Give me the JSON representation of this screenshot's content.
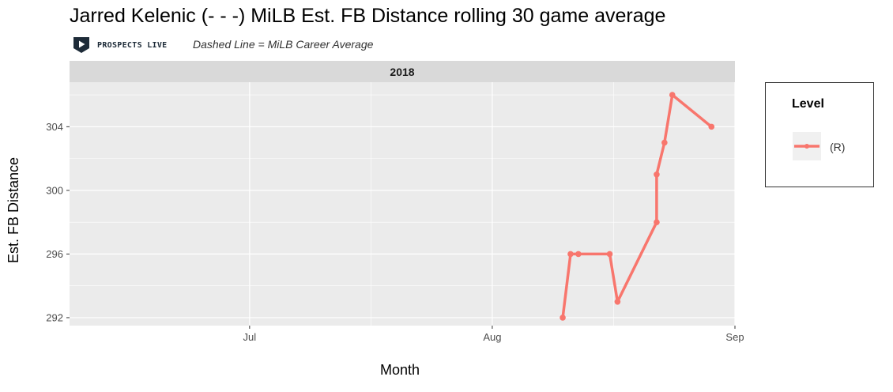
{
  "header": {
    "title": "Jarred Kelenic (- - -) MiLB Est. FB Distance rolling 30 game average",
    "brand": "PROSPECTS LIVE",
    "subtitle": "Dashed Line = MiLB Career Average"
  },
  "chart_data": {
    "type": "line",
    "title": "Jarred Kelenic (- - -) MiLB Est. FB Distance rolling 30 game average",
    "subtitle": "Dashed Line = MiLB Career Average",
    "facet_label": "2018",
    "xlabel": "Month",
    "ylabel": "Est. FB Distance",
    "x_ticks": [
      "Jul",
      "Aug",
      "Sep"
    ],
    "y_ticks": [
      292,
      296,
      300,
      304
    ],
    "xlim": [
      "2018-06-08",
      "2018-09-01"
    ],
    "ylim": [
      291.5,
      306.8
    ],
    "grid": true,
    "legend_position": "right",
    "legend_title": "Level",
    "series": [
      {
        "name": "(R)",
        "color": "#F8766D",
        "x": [
          "2018-08-10",
          "2018-08-11",
          "2018-08-12",
          "2018-08-16",
          "2018-08-17",
          "2018-08-22",
          "2018-08-22",
          "2018-08-23",
          "2018-08-24",
          "2018-08-29"
        ],
        "y": [
          292,
          296,
          296,
          296,
          293,
          298,
          301,
          303,
          306,
          304
        ]
      }
    ]
  },
  "legend": {
    "title": "Level",
    "items": [
      {
        "label": "(R)",
        "color": "#F8766D"
      }
    ]
  }
}
